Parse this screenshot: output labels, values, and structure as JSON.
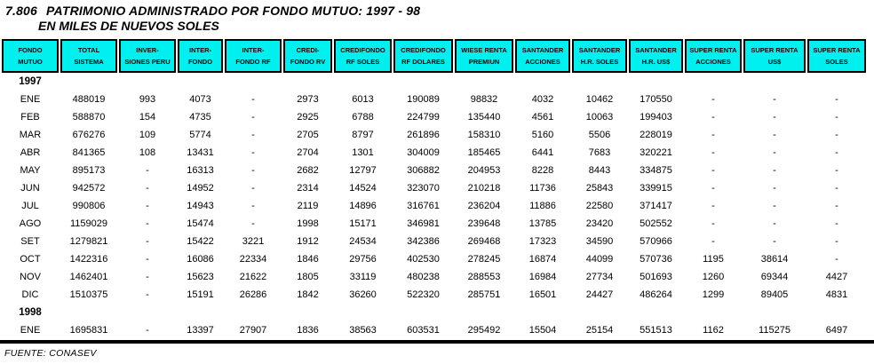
{
  "title": {
    "number": "7.806",
    "main": "PATRIMONIO ADMINISTRADO POR FONDO MUTUO: 1997 - 98",
    "subtitle": "EN MILES DE NUEVOS SOLES"
  },
  "colors": {
    "header_bg": "#00efef",
    "header_text": "#000000",
    "border": "#000000"
  },
  "table": {
    "columns": [
      {
        "lines": [
          "FONDO",
          "MUTUO"
        ]
      },
      {
        "lines": [
          "TOTAL",
          "SISTEMA"
        ]
      },
      {
        "lines": [
          "INVER-",
          "SIONES PERU"
        ]
      },
      {
        "lines": [
          "INTER-",
          "FONDO"
        ]
      },
      {
        "lines": [
          "INTER-",
          "FONDO RF"
        ]
      },
      {
        "lines": [
          "CREDI-",
          "FONDO RV"
        ]
      },
      {
        "lines": [
          "CREDIFONDO",
          "RF SOLES"
        ]
      },
      {
        "lines": [
          "CREDIFONDO",
          "RF DOLARES"
        ]
      },
      {
        "lines": [
          "WIESE RENTA",
          "PREMIUN"
        ]
      },
      {
        "lines": [
          "SANTANDER",
          "ACCIONES"
        ]
      },
      {
        "lines": [
          "SANTANDER",
          "H.R. SOLES"
        ]
      },
      {
        "lines": [
          "SANTANDER",
          "H.R. US$"
        ]
      },
      {
        "lines": [
          "SUPER RENTA",
          "ACCIONES"
        ]
      },
      {
        "lines": [
          "SUPER RENTA",
          "US$"
        ]
      },
      {
        "lines": [
          "SUPER RENTA",
          "SOLES"
        ]
      }
    ],
    "sections": [
      {
        "year": "1997",
        "rows": [
          {
            "month": "ENE",
            "values": [
              "488019",
              "993",
              "4073",
              "-",
              "2973",
              "6013",
              "190089",
              "98832",
              "4032",
              "10462",
              "170550",
              "-",
              "-",
              "-"
            ]
          },
          {
            "month": "FEB",
            "values": [
              "588870",
              "154",
              "4735",
              "-",
              "2925",
              "6788",
              "224799",
              "135440",
              "4561",
              "10063",
              "199403",
              "-",
              "-",
              "-"
            ]
          },
          {
            "month": "MAR",
            "values": [
              "676276",
              "109",
              "5774",
              "-",
              "2705",
              "8797",
              "261896",
              "158310",
              "5160",
              "5506",
              "228019",
              "-",
              "-",
              "-"
            ]
          },
          {
            "month": "ABR",
            "values": [
              "841365",
              "108",
              "13431",
              "-",
              "2704",
              "1301",
              "304009",
              "185465",
              "6441",
              "7683",
              "320221",
              "-",
              "-",
              "-"
            ]
          },
          {
            "month": "MAY",
            "values": [
              "895173",
              "-",
              "16313",
              "-",
              "2682",
              "12797",
              "306882",
              "204953",
              "8228",
              "8443",
              "334875",
              "-",
              "-",
              "-"
            ]
          },
          {
            "month": "JUN",
            "values": [
              "942572",
              "-",
              "14952",
              "-",
              "2314",
              "14524",
              "323070",
              "210218",
              "11736",
              "25843",
              "339915",
              "-",
              "-",
              "-"
            ]
          },
          {
            "month": "JUL",
            "values": [
              "990806",
              "-",
              "14943",
              "-",
              "2119",
              "14896",
              "316761",
              "236204",
              "11886",
              "22580",
              "371417",
              "-",
              "-",
              "-"
            ]
          },
          {
            "month": "AGO",
            "values": [
              "1159029",
              "-",
              "15474",
              "-",
              "1998",
              "15171",
              "346981",
              "239648",
              "13785",
              "23420",
              "502552",
              "-",
              "-",
              "-"
            ]
          },
          {
            "month": "SET",
            "values": [
              "1279821",
              "-",
              "15422",
              "3221",
              "1912",
              "24534",
              "342386",
              "269468",
              "17323",
              "34590",
              "570966",
              "-",
              "-",
              "-"
            ]
          },
          {
            "month": "OCT",
            "values": [
              "1422316",
              "-",
              "16086",
              "22334",
              "1846",
              "29756",
              "402530",
              "278245",
              "16874",
              "44099",
              "570736",
              "1195",
              "38614",
              "-"
            ]
          },
          {
            "month": "NOV",
            "values": [
              "1462401",
              "-",
              "15623",
              "21622",
              "1805",
              "33119",
              "480238",
              "288553",
              "16984",
              "27734",
              "501693",
              "1260",
              "69344",
              "4427"
            ]
          },
          {
            "month": "DIC",
            "values": [
              "1510375",
              "-",
              "15191",
              "26286",
              "1842",
              "36260",
              "522320",
              "285751",
              "16501",
              "24427",
              "486264",
              "1299",
              "89405",
              "4831"
            ]
          }
        ]
      },
      {
        "year": "1998",
        "rows": [
          {
            "month": "ENE",
            "values": [
              "1695831",
              "-",
              "13397",
              "27907",
              "1836",
              "38563",
              "603531",
              "295492",
              "15504",
              "25154",
              "551513",
              "1162",
              "115275",
              "6497"
            ]
          }
        ]
      }
    ]
  },
  "footer": {
    "source": "FUENTE: CONASEV"
  }
}
